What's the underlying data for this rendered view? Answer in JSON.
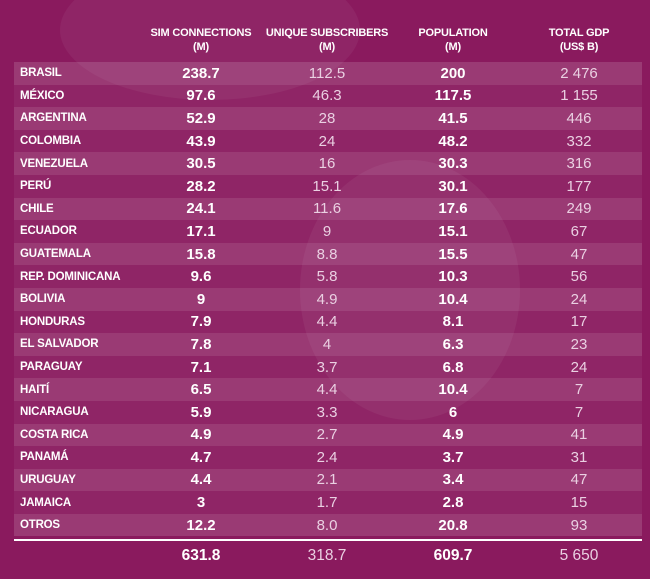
{
  "headers": [
    {
      "line1": "SIM CONNECTIONS",
      "line2": "(M)"
    },
    {
      "line1": "UNIQUE SUBSCRIBERS",
      "line2": "(M)"
    },
    {
      "line1": "POPULATION",
      "line2": "(M)"
    },
    {
      "line1": "TOTAL GDP",
      "line2": "(US$ B)"
    }
  ],
  "rows": [
    {
      "country": "BRASIL",
      "sim": "238.7",
      "subs": "112.5",
      "pop": "200",
      "gdp": "2 476"
    },
    {
      "country": "MÉXICO",
      "sim": "97.6",
      "subs": "46.3",
      "pop": "117.5",
      "gdp": "1 155"
    },
    {
      "country": "ARGENTINA",
      "sim": "52.9",
      "subs": "28",
      "pop": "41.5",
      "gdp": "446"
    },
    {
      "country": "COLOMBIA",
      "sim": "43.9",
      "subs": "24",
      "pop": "48.2",
      "gdp": "332"
    },
    {
      "country": "VENEZUELA",
      "sim": "30.5",
      "subs": "16",
      "pop": "30.3",
      "gdp": "316"
    },
    {
      "country": "PERÚ",
      "sim": "28.2",
      "subs": "15.1",
      "pop": "30.1",
      "gdp": "177"
    },
    {
      "country": "CHILE",
      "sim": "24.1",
      "subs": "11.6",
      "pop": "17.6",
      "gdp": "249"
    },
    {
      "country": "ECUADOR",
      "sim": "17.1",
      "subs": "9",
      "pop": "15.1",
      "gdp": "67"
    },
    {
      "country": "GUATEMALA",
      "sim": "15.8",
      "subs": "8.8",
      "pop": "15.5",
      "gdp": "47"
    },
    {
      "country": "REP. DOMINICANA",
      "sim": "9.6",
      "subs": "5.8",
      "pop": "10.3",
      "gdp": "56"
    },
    {
      "country": "BOLIVIA",
      "sim": "9",
      "subs": "4.9",
      "pop": "10.4",
      "gdp": "24"
    },
    {
      "country": "HONDURAS",
      "sim": "7.9",
      "subs": "4.4",
      "pop": "8.1",
      "gdp": "17"
    },
    {
      "country": "EL SALVADOR",
      "sim": "7.8",
      "subs": "4",
      "pop": "6.3",
      "gdp": "23"
    },
    {
      "country": "PARAGUAY",
      "sim": "7.1",
      "subs": "3.7",
      "pop": "6.8",
      "gdp": "24"
    },
    {
      "country": "HAITÍ",
      "sim": "6.5",
      "subs": "4.4",
      "pop": "10.4",
      "gdp": "7"
    },
    {
      "country": "NICARAGUA",
      "sim": "5.9",
      "subs": "3.3",
      "pop": "6",
      "gdp": "7"
    },
    {
      "country": "COSTA RICA",
      "sim": "4.9",
      "subs": "2.7",
      "pop": "4.9",
      "gdp": "41"
    },
    {
      "country": "PANAMÁ",
      "sim": "4.7",
      "subs": "2.4",
      "pop": "3.7",
      "gdp": "31"
    },
    {
      "country": "URUGUAY",
      "sim": "4.4",
      "subs": "2.1",
      "pop": "3.4",
      "gdp": "47"
    },
    {
      "country": "JAMAICA",
      "sim": "3",
      "subs": "1.7",
      "pop": "2.8",
      "gdp": "15"
    },
    {
      "country": "OTROS",
      "sim": "12.2",
      "subs": "8.0",
      "pop": "20.8",
      "gdp": "93"
    }
  ],
  "totals": {
    "sim": "631.8",
    "subs": "318.7",
    "pop": "609.7",
    "gdp": "5 650"
  }
}
